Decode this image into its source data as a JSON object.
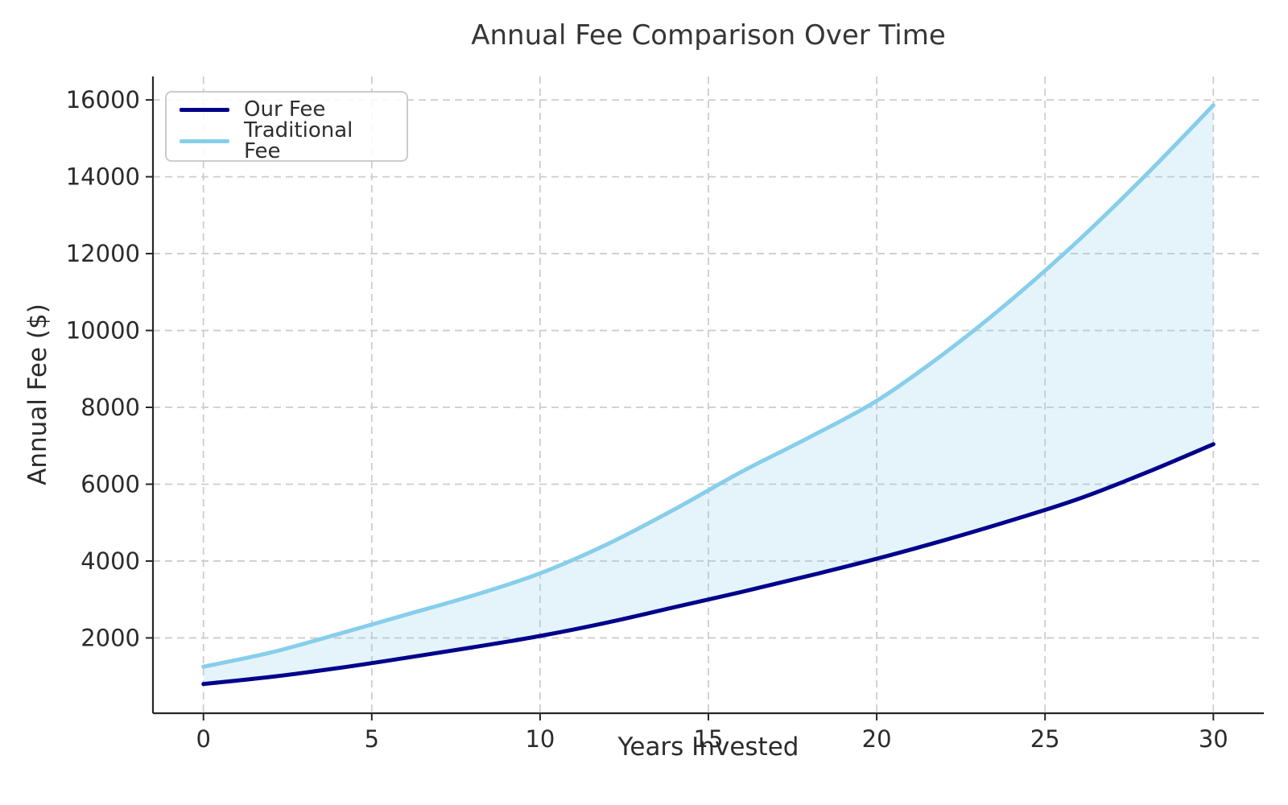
{
  "chart_data": {
    "type": "line",
    "title": "Annual Fee Comparison Over Time",
    "xlabel": "Years Invested",
    "ylabel": "Annual Fee ($)",
    "x": [
      0,
      2,
      4,
      6,
      8,
      10,
      12,
      14,
      16,
      18,
      20,
      22,
      24,
      26,
      28,
      30
    ],
    "series": [
      {
        "name": "Our Fee",
        "color": "#00008B",
        "values": [
          800,
          985,
          1215,
          1480,
          1755,
          2050,
          2400,
          2800,
          3200,
          3620,
          4060,
          4540,
          5060,
          5620,
          6300,
          7040
        ]
      },
      {
        "name": "Traditional Fee",
        "color": "#87CEEB",
        "values": [
          1250,
          1620,
          2100,
          2600,
          3100,
          3680,
          4440,
          5350,
          6330,
          7220,
          8170,
          9400,
          10800,
          12350,
          14050,
          15860
        ]
      }
    ],
    "fill_between": {
      "upper": "Traditional Fee",
      "lower": "Our Fee",
      "color": "#87CEEB",
      "opacity": 0.22
    },
    "xticks": [
      0,
      5,
      10,
      15,
      20,
      25,
      30
    ],
    "yticks": [
      2000,
      4000,
      6000,
      8000,
      10000,
      12000,
      14000,
      16000
    ],
    "xlim": [
      -1.5,
      31.5
    ],
    "ylim": [
      40,
      16610
    ],
    "grid": true,
    "grid_style": "dashed",
    "legend_position": "upper-left"
  },
  "colors": {
    "grid": "#cdcdcd",
    "spine": "#262626",
    "tick_text": "#2b2b2b"
  }
}
